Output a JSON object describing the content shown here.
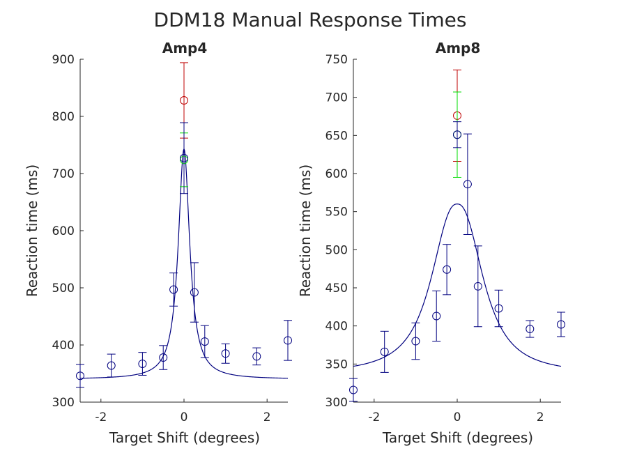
{
  "figure": {
    "title": "DDM18 Manual Response Times"
  },
  "colors": {
    "blue": "#00007f",
    "red": "#bf0000",
    "green": "#00dd00",
    "axis": "#262626"
  },
  "chart_data": [
    {
      "type": "scatter",
      "title": "Amp4",
      "xlabel": "Target Shift (degrees)",
      "ylabel": "Reaction time (ms)",
      "xlim": [
        -2.5,
        2.5
      ],
      "ylim": [
        300,
        900
      ],
      "xticks": [
        -2,
        0,
        2
      ],
      "xtick_labels": [
        "-2",
        "0",
        "2"
      ],
      "yticks": [
        300,
        400,
        500,
        600,
        700,
        800,
        900
      ],
      "ytick_labels": [
        "300",
        "400",
        "500",
        "600",
        "700",
        "800",
        "900"
      ],
      "series": [
        {
          "color": "blue",
          "marker": "circle",
          "x": [
            -2.5,
            -1.75,
            -1.0,
            -0.5,
            -0.25,
            0.25,
            0.5,
            1.0,
            1.75,
            2.5
          ],
          "y": [
            346,
            364,
            367,
            378,
            497,
            492,
            406,
            385,
            380,
            408
          ],
          "yerr": [
            20,
            20,
            20,
            21,
            29,
            52,
            28,
            17,
            15,
            35
          ]
        },
        {
          "color": "red",
          "marker": "circle",
          "x": [
            0
          ],
          "y": [
            828
          ],
          "yerr": [
            66
          ]
        },
        {
          "color": "green",
          "marker": "circle",
          "x": [
            0
          ],
          "y": [
            724
          ],
          "yerr": [
            47
          ]
        },
        {
          "color": "blue",
          "marker": "circle",
          "x": [
            0
          ],
          "y": [
            727
          ],
          "yerr": [
            62
          ]
        }
      ],
      "fit": {
        "type": "line",
        "color": "blue",
        "baseline": 340,
        "peak": 403,
        "width": 0.1667,
        "power": 1
      }
    },
    {
      "type": "scatter",
      "title": "Amp8",
      "xlabel": "Target Shift (degrees)",
      "ylabel": "Reaction time (ms)",
      "xlim": [
        -2.5,
        2.5
      ],
      "ylim": [
        300,
        750
      ],
      "xticks": [
        -2,
        0,
        2
      ],
      "xtick_labels": [
        "-2",
        "0",
        "2"
      ],
      "yticks": [
        300,
        350,
        400,
        450,
        500,
        550,
        600,
        650,
        700,
        750
      ],
      "ytick_labels": [
        "300",
        "350",
        "400",
        "450",
        "500",
        "550",
        "600",
        "650",
        "700",
        "750"
      ],
      "series": [
        {
          "color": "blue",
          "marker": "circle",
          "x": [
            -2.5,
            -1.75,
            -1.0,
            -0.5,
            -0.25,
            0.25,
            0.5,
            1.0,
            1.75,
            2.5
          ],
          "y": [
            316,
            366,
            380,
            413,
            474,
            586,
            452,
            423,
            396,
            402
          ],
          "yerr": [
            15,
            27,
            24,
            33,
            33,
            66,
            53,
            24,
            11,
            16
          ]
        },
        {
          "color": "red",
          "marker": "circle",
          "x": [
            0
          ],
          "y": [
            676
          ],
          "yerr": [
            60
          ]
        },
        {
          "color": "green",
          "marker": "circle",
          "x": [
            0
          ],
          "y": [
            651
          ],
          "yerr": [
            56
          ]
        },
        {
          "color": "blue",
          "marker": "circle",
          "x": [
            0
          ],
          "y": [
            651
          ],
          "yerr": [
            17
          ]
        }
      ],
      "fit": {
        "type": "line",
        "color": "blue",
        "baseline": 337,
        "peak": 223,
        "width": 0.7,
        "power": 1.2
      }
    }
  ]
}
